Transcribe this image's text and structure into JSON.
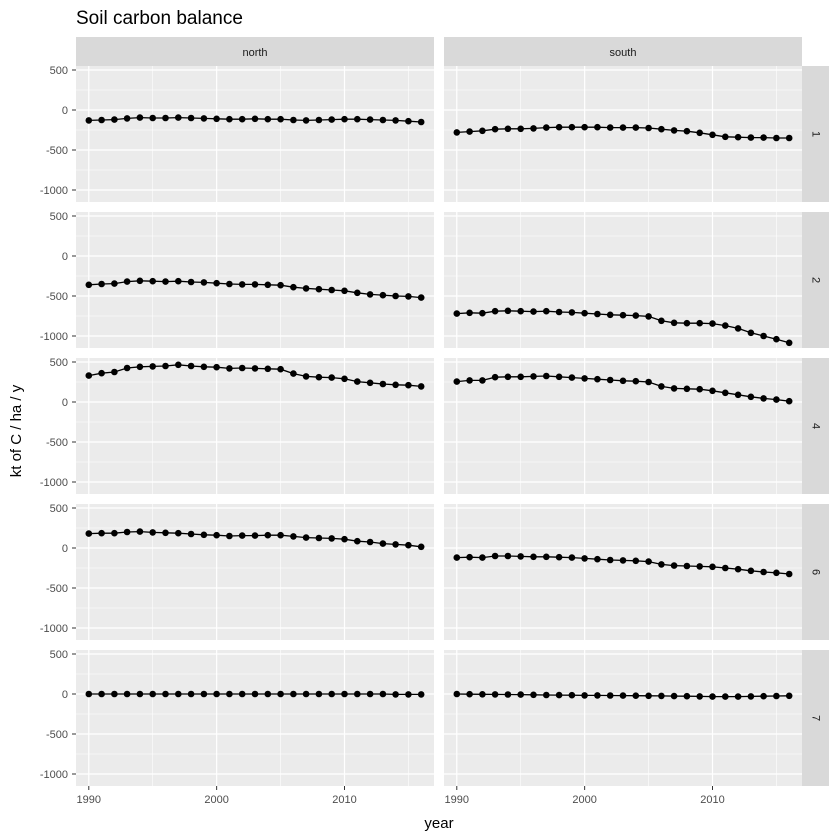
{
  "chart_data": {
    "type": "line",
    "title": "Soil carbon balance",
    "xlabel": "year",
    "ylabel": "kt of C / ha / y",
    "xlim": [
      1989,
      2017
    ],
    "ylim": [
      -1150,
      550
    ],
    "x_ticks": [
      1990,
      2000,
      2010
    ],
    "x_minor_ticks": [
      1995,
      2005,
      2015
    ],
    "y_ticks": [
      500,
      0,
      -500,
      -1000
    ],
    "y_minor_ticks": [
      250,
      -250,
      -750
    ],
    "col_facets": [
      "north",
      "south"
    ],
    "row_facets": [
      "1",
      "2",
      "4",
      "6",
      "7"
    ],
    "grid": true,
    "colors": {
      "panel_bg": "#EBEBEB",
      "grid": "#FFFFFF",
      "strip_bg": "#D9D9D9",
      "series": "#000000"
    },
    "x": [
      1990,
      1991,
      1992,
      1993,
      1994,
      1995,
      1996,
      1997,
      1998,
      1999,
      2000,
      2001,
      2002,
      2003,
      2004,
      2005,
      2006,
      2007,
      2008,
      2009,
      2010,
      2011,
      2012,
      2013,
      2014,
      2015,
      2016
    ],
    "panels": [
      {
        "row": "1",
        "col": "north",
        "values": [
          -130,
          -125,
          -120,
          -105,
          -95,
          -100,
          -100,
          -95,
          -100,
          -105,
          -110,
          -115,
          -115,
          -110,
          -115,
          -115,
          -125,
          -130,
          -125,
          -120,
          -115,
          -115,
          -120,
          -125,
          -130,
          -140,
          -150
        ]
      },
      {
        "row": "1",
        "col": "south",
        "values": [
          -280,
          -270,
          -260,
          -240,
          -235,
          -235,
          -230,
          -220,
          -215,
          -215,
          -215,
          -215,
          -220,
          -220,
          -220,
          -225,
          -240,
          -255,
          -265,
          -285,
          -310,
          -335,
          -340,
          -345,
          -345,
          -350,
          -350
        ]
      },
      {
        "row": "2",
        "col": "north",
        "values": [
          -360,
          -350,
          -345,
          -320,
          -310,
          -315,
          -320,
          -315,
          -325,
          -330,
          -340,
          -350,
          -355,
          -355,
          -360,
          -365,
          -390,
          -405,
          -415,
          -425,
          -435,
          -460,
          -480,
          -490,
          -500,
          -505,
          -520
        ]
      },
      {
        "row": "2",
        "col": "south",
        "values": [
          -720,
          -710,
          -715,
          -690,
          -685,
          -690,
          -695,
          -690,
          -700,
          -705,
          -715,
          -725,
          -735,
          -740,
          -745,
          -755,
          -810,
          -835,
          -840,
          -840,
          -845,
          -870,
          -905,
          -960,
          -1000,
          -1040,
          -1085
        ]
      },
      {
        "row": "4",
        "col": "north",
        "values": [
          330,
          360,
          375,
          425,
          440,
          445,
          450,
          465,
          450,
          440,
          435,
          420,
          425,
          420,
          415,
          410,
          355,
          320,
          310,
          305,
          290,
          255,
          240,
          225,
          215,
          210,
          195
        ]
      },
      {
        "row": "4",
        "col": "south",
        "values": [
          255,
          270,
          270,
          310,
          315,
          315,
          320,
          325,
          315,
          305,
          295,
          285,
          275,
          265,
          260,
          250,
          195,
          170,
          165,
          160,
          140,
          115,
          90,
          65,
          45,
          30,
          10
        ]
      },
      {
        "row": "6",
        "col": "north",
        "values": [
          180,
          185,
          185,
          200,
          205,
          195,
          190,
          185,
          175,
          165,
          160,
          150,
          155,
          155,
          160,
          160,
          145,
          130,
          125,
          120,
          110,
          85,
          75,
          55,
          45,
          35,
          15
        ]
      },
      {
        "row": "6",
        "col": "south",
        "values": [
          -120,
          -115,
          -120,
          -100,
          -100,
          -105,
          -110,
          -110,
          -115,
          -120,
          -130,
          -140,
          -150,
          -155,
          -160,
          -170,
          -205,
          -220,
          -225,
          -230,
          -235,
          -250,
          -265,
          -285,
          -300,
          -310,
          -325
        ]
      },
      {
        "row": "7",
        "col": "north",
        "values": [
          0,
          0,
          0,
          0,
          0,
          0,
          0,
          0,
          0,
          0,
          0,
          0,
          0,
          0,
          0,
          0,
          0,
          0,
          0,
          0,
          0,
          0,
          0,
          0,
          -5,
          -5,
          -5
        ]
      },
      {
        "row": "7",
        "col": "south",
        "values": [
          0,
          -2,
          -4,
          -5,
          -6,
          -8,
          -10,
          -12,
          -14,
          -15,
          -17,
          -18,
          -19,
          -20,
          -21,
          -22,
          -24,
          -26,
          -28,
          -30,
          -32,
          -33,
          -32,
          -30,
          -28,
          -25,
          -22
        ]
      }
    ]
  }
}
